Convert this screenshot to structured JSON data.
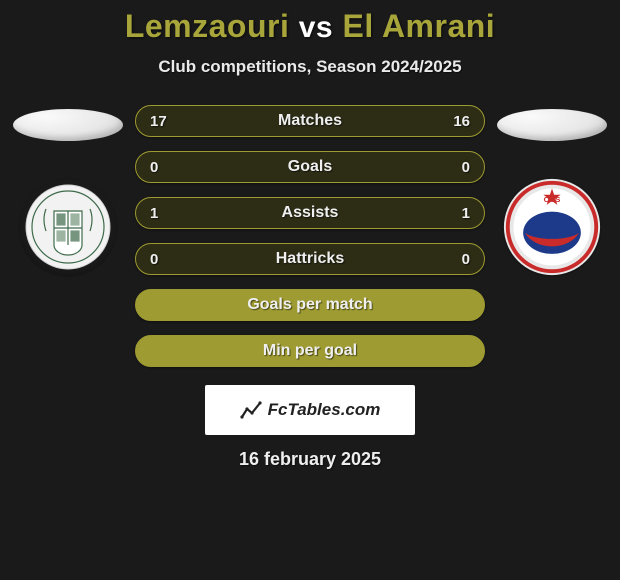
{
  "header": {
    "player1": "Lemzaouri",
    "vs": "vs",
    "player2": "El Amrani",
    "player1_color": "#a8a53a",
    "player2_color": "#a8a53a",
    "vs_color": "#ffffff"
  },
  "subtitle": "Club competitions, Season 2024/2025",
  "stats": {
    "rows": [
      {
        "label": "Matches",
        "left": "17",
        "right": "16",
        "border": "#9e9b32",
        "bg": "#2d2c15"
      },
      {
        "label": "Goals",
        "left": "0",
        "right": "0",
        "border": "#9e9b32",
        "bg": "#2d2c15"
      },
      {
        "label": "Assists",
        "left": "1",
        "right": "1",
        "border": "#9e9b32",
        "bg": "#2d2c15"
      },
      {
        "label": "Hattricks",
        "left": "0",
        "right": "0",
        "border": "#9e9b32",
        "bg": "#2d2c15"
      },
      {
        "label": "Goals per match",
        "left": "",
        "right": "",
        "border": "#9e9b32",
        "bg": "#9e9b32"
      },
      {
        "label": "Min per goal",
        "left": "",
        "right": "",
        "border": "#9e9b32",
        "bg": "#9e9b32"
      }
    ]
  },
  "left_team": {
    "crest_bg": "#f2f2f2",
    "crest_color1": "#3e6b4a",
    "crest_color2": "#3e6b4a"
  },
  "right_team": {
    "crest_bg": "#e8e8e8",
    "crest_ring": "#c92a2a",
    "crest_inner": "#1d3a8a",
    "crest_star": "#c92a2a"
  },
  "footer": {
    "brand": "FcTables.com",
    "date": "16 february 2025"
  },
  "colors": {
    "page_bg": "#1a1a1a"
  }
}
